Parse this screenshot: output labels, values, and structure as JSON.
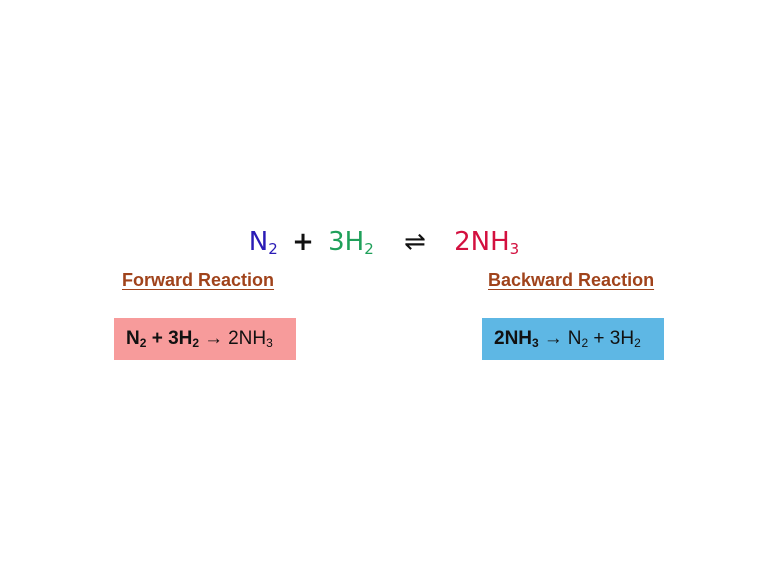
{
  "equation": {
    "n": "N",
    "n_sub": "2",
    "plus": "+",
    "h_coef": "3H",
    "h_sub": "2",
    "arrow": "⇌",
    "product": "2NH",
    "product_sub": "3"
  },
  "forward": {
    "heading": "Forward Reaction",
    "n": "N",
    "n_sub": "2",
    "plus": "+ 3H",
    "h_sub": "2",
    "arrow": "→",
    "product": "2NH",
    "product_sub": "3"
  },
  "backward": {
    "heading": "Backward Reaction",
    "reactant": "2NH",
    "reactant_sub": "3",
    "arrow": "→",
    "n": "N",
    "n_sub": "2",
    "plus": "+ 3H",
    "h_sub": "2"
  },
  "colors": {
    "nitrogen": "#2a1bb5",
    "hydrogen": "#1fa05a",
    "ammonia": "#d3103f",
    "heading": "#a0431b",
    "forward_box": "#f79b9b",
    "backward_box": "#5eb7e4"
  }
}
